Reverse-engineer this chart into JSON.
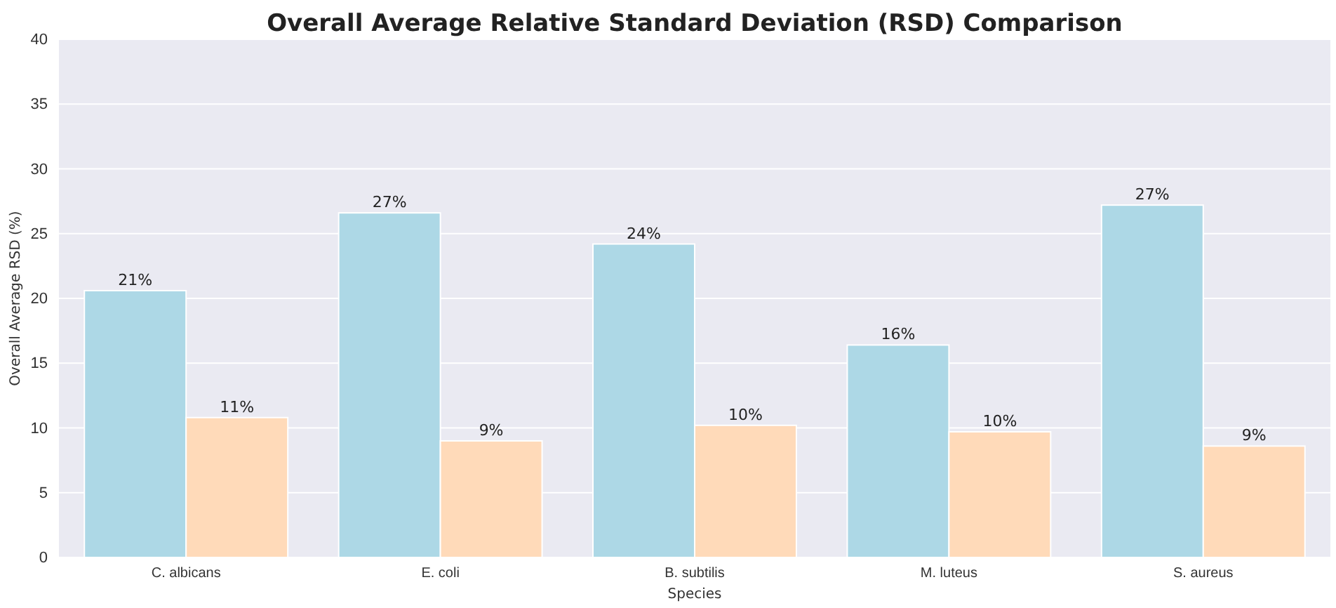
{
  "chart_data": {
    "type": "bar",
    "title": "Overall Average Relative Standard Deviation (RSD) Comparison",
    "xlabel": "Species",
    "ylabel": "Overall Average RSD (%)",
    "categories": [
      "C. albicans",
      "E. coli",
      "B. subtilis",
      "M. luteus",
      "S. aureus"
    ],
    "series": [
      {
        "color": "#add8e6",
        "values": [
          20.6,
          26.6,
          24.2,
          16.4,
          27.2
        ],
        "value_labels": [
          "21%",
          "27%",
          "24%",
          "16%",
          "27%"
        ]
      },
      {
        "color": "#ffdab9",
        "values": [
          10.8,
          9.0,
          10.2,
          9.7,
          8.6
        ],
        "value_labels": [
          "11%",
          "9%",
          "10%",
          "10%",
          "9%"
        ]
      }
    ],
    "ylim": [
      0,
      40
    ],
    "yticks": [
      0,
      5,
      10,
      15,
      20,
      25,
      30,
      35,
      40
    ],
    "grid": "y"
  }
}
